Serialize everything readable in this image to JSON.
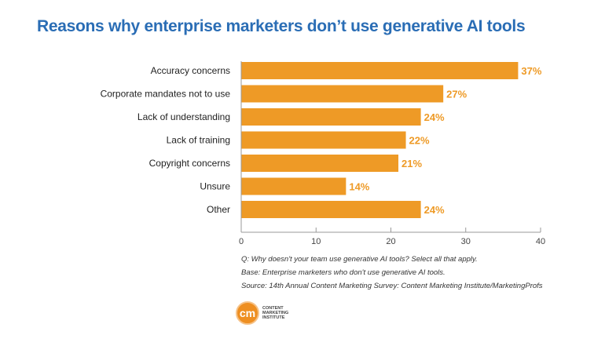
{
  "chart_data": {
    "type": "bar",
    "orientation": "horizontal",
    "title": "Reasons why enterprise marketers don’t use generative AI tools",
    "categories": [
      "Accuracy concerns",
      "Corporate mandates not to use",
      "Lack of understanding",
      "Lack of training",
      "Copyright concerns",
      "Unsure",
      "Other"
    ],
    "values": [
      37,
      27,
      24,
      22,
      21,
      14,
      24
    ],
    "data_labels": [
      "37%",
      "27%",
      "24%",
      "22%",
      "21%",
      "14%",
      "24%"
    ],
    "xlim": [
      0,
      40
    ],
    "xticks": [
      0,
      10,
      20,
      30,
      40
    ],
    "grid": false,
    "bar_color": "#ee9a26",
    "label_color": "#ee9a26",
    "title_color": "#2a6db5"
  },
  "notes": {
    "question": "Q: Why doesn't your team use generative AI tools? Select all that apply.",
    "base": "Base: Enterprise marketers who don't use generative AI tools.",
    "source": "Source: 14th Annual Content Marketing Survey: Content Marketing Institute/MarketingProfs"
  },
  "logo": {
    "mark": "cm",
    "text": "CONTENT MARKETING INSTITUTE"
  }
}
